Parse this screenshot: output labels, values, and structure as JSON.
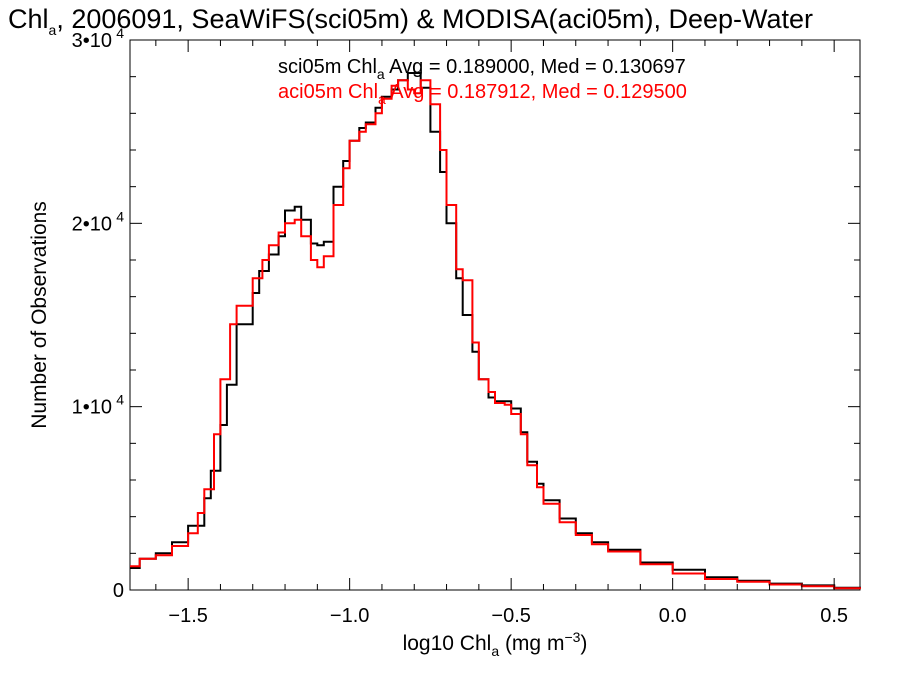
{
  "chart_data": {
    "type": "line",
    "title": {
      "pre": "Chl",
      "sub": "a",
      "post": ", 2006091, SeaWiFS(sci05m) & MODISA(aci05m), Deep-Water"
    },
    "legend": [
      {
        "name": "sci05m",
        "label": "sci05m Chl",
        "sub": "a",
        "stats": " Avg = 0.189000, Med = 0.130697",
        "color": "#000000"
      },
      {
        "name": "aci05m",
        "label": "aci05m Chl",
        "sub": "a",
        "stats": " Avg = 0.187912, Med = 0.129500",
        "color": "#ff0000"
      }
    ],
    "xlabel": {
      "pre": "log10 Chl",
      "sub": "a",
      "post": " (mg m",
      "sup": "−3",
      "end": ")"
    },
    "ylabel": "Number of Observations",
    "xlim": [
      -1.68,
      0.58
    ],
    "ylim": [
      0,
      30000
    ],
    "xticks": [
      {
        "value": -1.5,
        "label": "−1.5"
      },
      {
        "value": -1.0,
        "label": "−1.0"
      },
      {
        "value": -0.5,
        "label": "−0.5"
      },
      {
        "value": 0.0,
        "label": "0.0"
      },
      {
        "value": 0.5,
        "label": "0.5"
      }
    ],
    "yticks": [
      {
        "value": 0,
        "label": "0",
        "exp": ""
      },
      {
        "value": 10000,
        "label": "1•10",
        "exp": "4"
      },
      {
        "value": 20000,
        "label": "2•10",
        "exp": "4"
      },
      {
        "value": 30000,
        "label": "3•10",
        "exp": "4"
      }
    ],
    "grid": false,
    "legend_position": "top",
    "series": [
      {
        "name": "sci05m",
        "color": "#000000",
        "x": [
          -1.68,
          -1.65,
          -1.6,
          -1.55,
          -1.5,
          -1.45,
          -1.43,
          -1.4,
          -1.38,
          -1.35,
          -1.3,
          -1.28,
          -1.25,
          -1.22,
          -1.2,
          -1.17,
          -1.15,
          -1.12,
          -1.1,
          -1.08,
          -1.05,
          -1.02,
          -1.0,
          -0.97,
          -0.95,
          -0.92,
          -0.9,
          -0.87,
          -0.85,
          -0.82,
          -0.8,
          -0.78,
          -0.75,
          -0.72,
          -0.7,
          -0.67,
          -0.65,
          -0.62,
          -0.6,
          -0.57,
          -0.55,
          -0.52,
          -0.5,
          -0.47,
          -0.45,
          -0.42,
          -0.4,
          -0.35,
          -0.3,
          -0.25,
          -0.2,
          -0.1,
          0.0,
          0.1,
          0.2,
          0.3,
          0.4,
          0.5,
          0.58
        ],
        "values": [
          1200,
          1700,
          2000,
          2600,
          3500,
          5000,
          6500,
          9000,
          11200,
          14500,
          16200,
          17400,
          18300,
          19300,
          20700,
          20900,
          20200,
          18900,
          18800,
          19000,
          22000,
          23400,
          24500,
          25200,
          25500,
          26300,
          26900,
          27300,
          27800,
          28200,
          28200,
          27400,
          25000,
          22800,
          20000,
          17000,
          15000,
          13000,
          11500,
          10500,
          10300,
          10300,
          9900,
          8600,
          7000,
          5800,
          4900,
          3900,
          3100,
          2600,
          2200,
          1500,
          1100,
          700,
          500,
          350,
          250,
          120,
          80
        ]
      },
      {
        "name": "aci05m",
        "color": "#ff0000",
        "x": [
          -1.68,
          -1.65,
          -1.6,
          -1.55,
          -1.5,
          -1.47,
          -1.45,
          -1.42,
          -1.4,
          -1.37,
          -1.35,
          -1.3,
          -1.27,
          -1.25,
          -1.22,
          -1.2,
          -1.17,
          -1.15,
          -1.12,
          -1.1,
          -1.08,
          -1.05,
          -1.02,
          -1.0,
          -0.97,
          -0.95,
          -0.92,
          -0.9,
          -0.87,
          -0.85,
          -0.82,
          -0.8,
          -0.78,
          -0.75,
          -0.72,
          -0.7,
          -0.67,
          -0.65,
          -0.62,
          -0.6,
          -0.57,
          -0.55,
          -0.52,
          -0.5,
          -0.47,
          -0.45,
          -0.42,
          -0.4,
          -0.35,
          -0.3,
          -0.25,
          -0.2,
          -0.1,
          0.0,
          0.1,
          0.2,
          0.3,
          0.4,
          0.5,
          0.58
        ],
        "values": [
          1300,
          1700,
          1900,
          2400,
          3100,
          4200,
          5500,
          8500,
          11500,
          14500,
          15500,
          17000,
          18000,
          18800,
          19500,
          20000,
          20200,
          19300,
          18000,
          17600,
          18200,
          21000,
          23000,
          24500,
          25000,
          25400,
          26000,
          26800,
          27500,
          27800,
          27300,
          27100,
          27800,
          26500,
          24000,
          21000,
          17500,
          16900,
          13500,
          11500,
          10800,
          10200,
          10100,
          9600,
          8500,
          6800,
          5600,
          4700,
          3700,
          3000,
          2500,
          2100,
          1400,
          900,
          600,
          450,
          300,
          200,
          100,
          50
        ]
      }
    ]
  }
}
